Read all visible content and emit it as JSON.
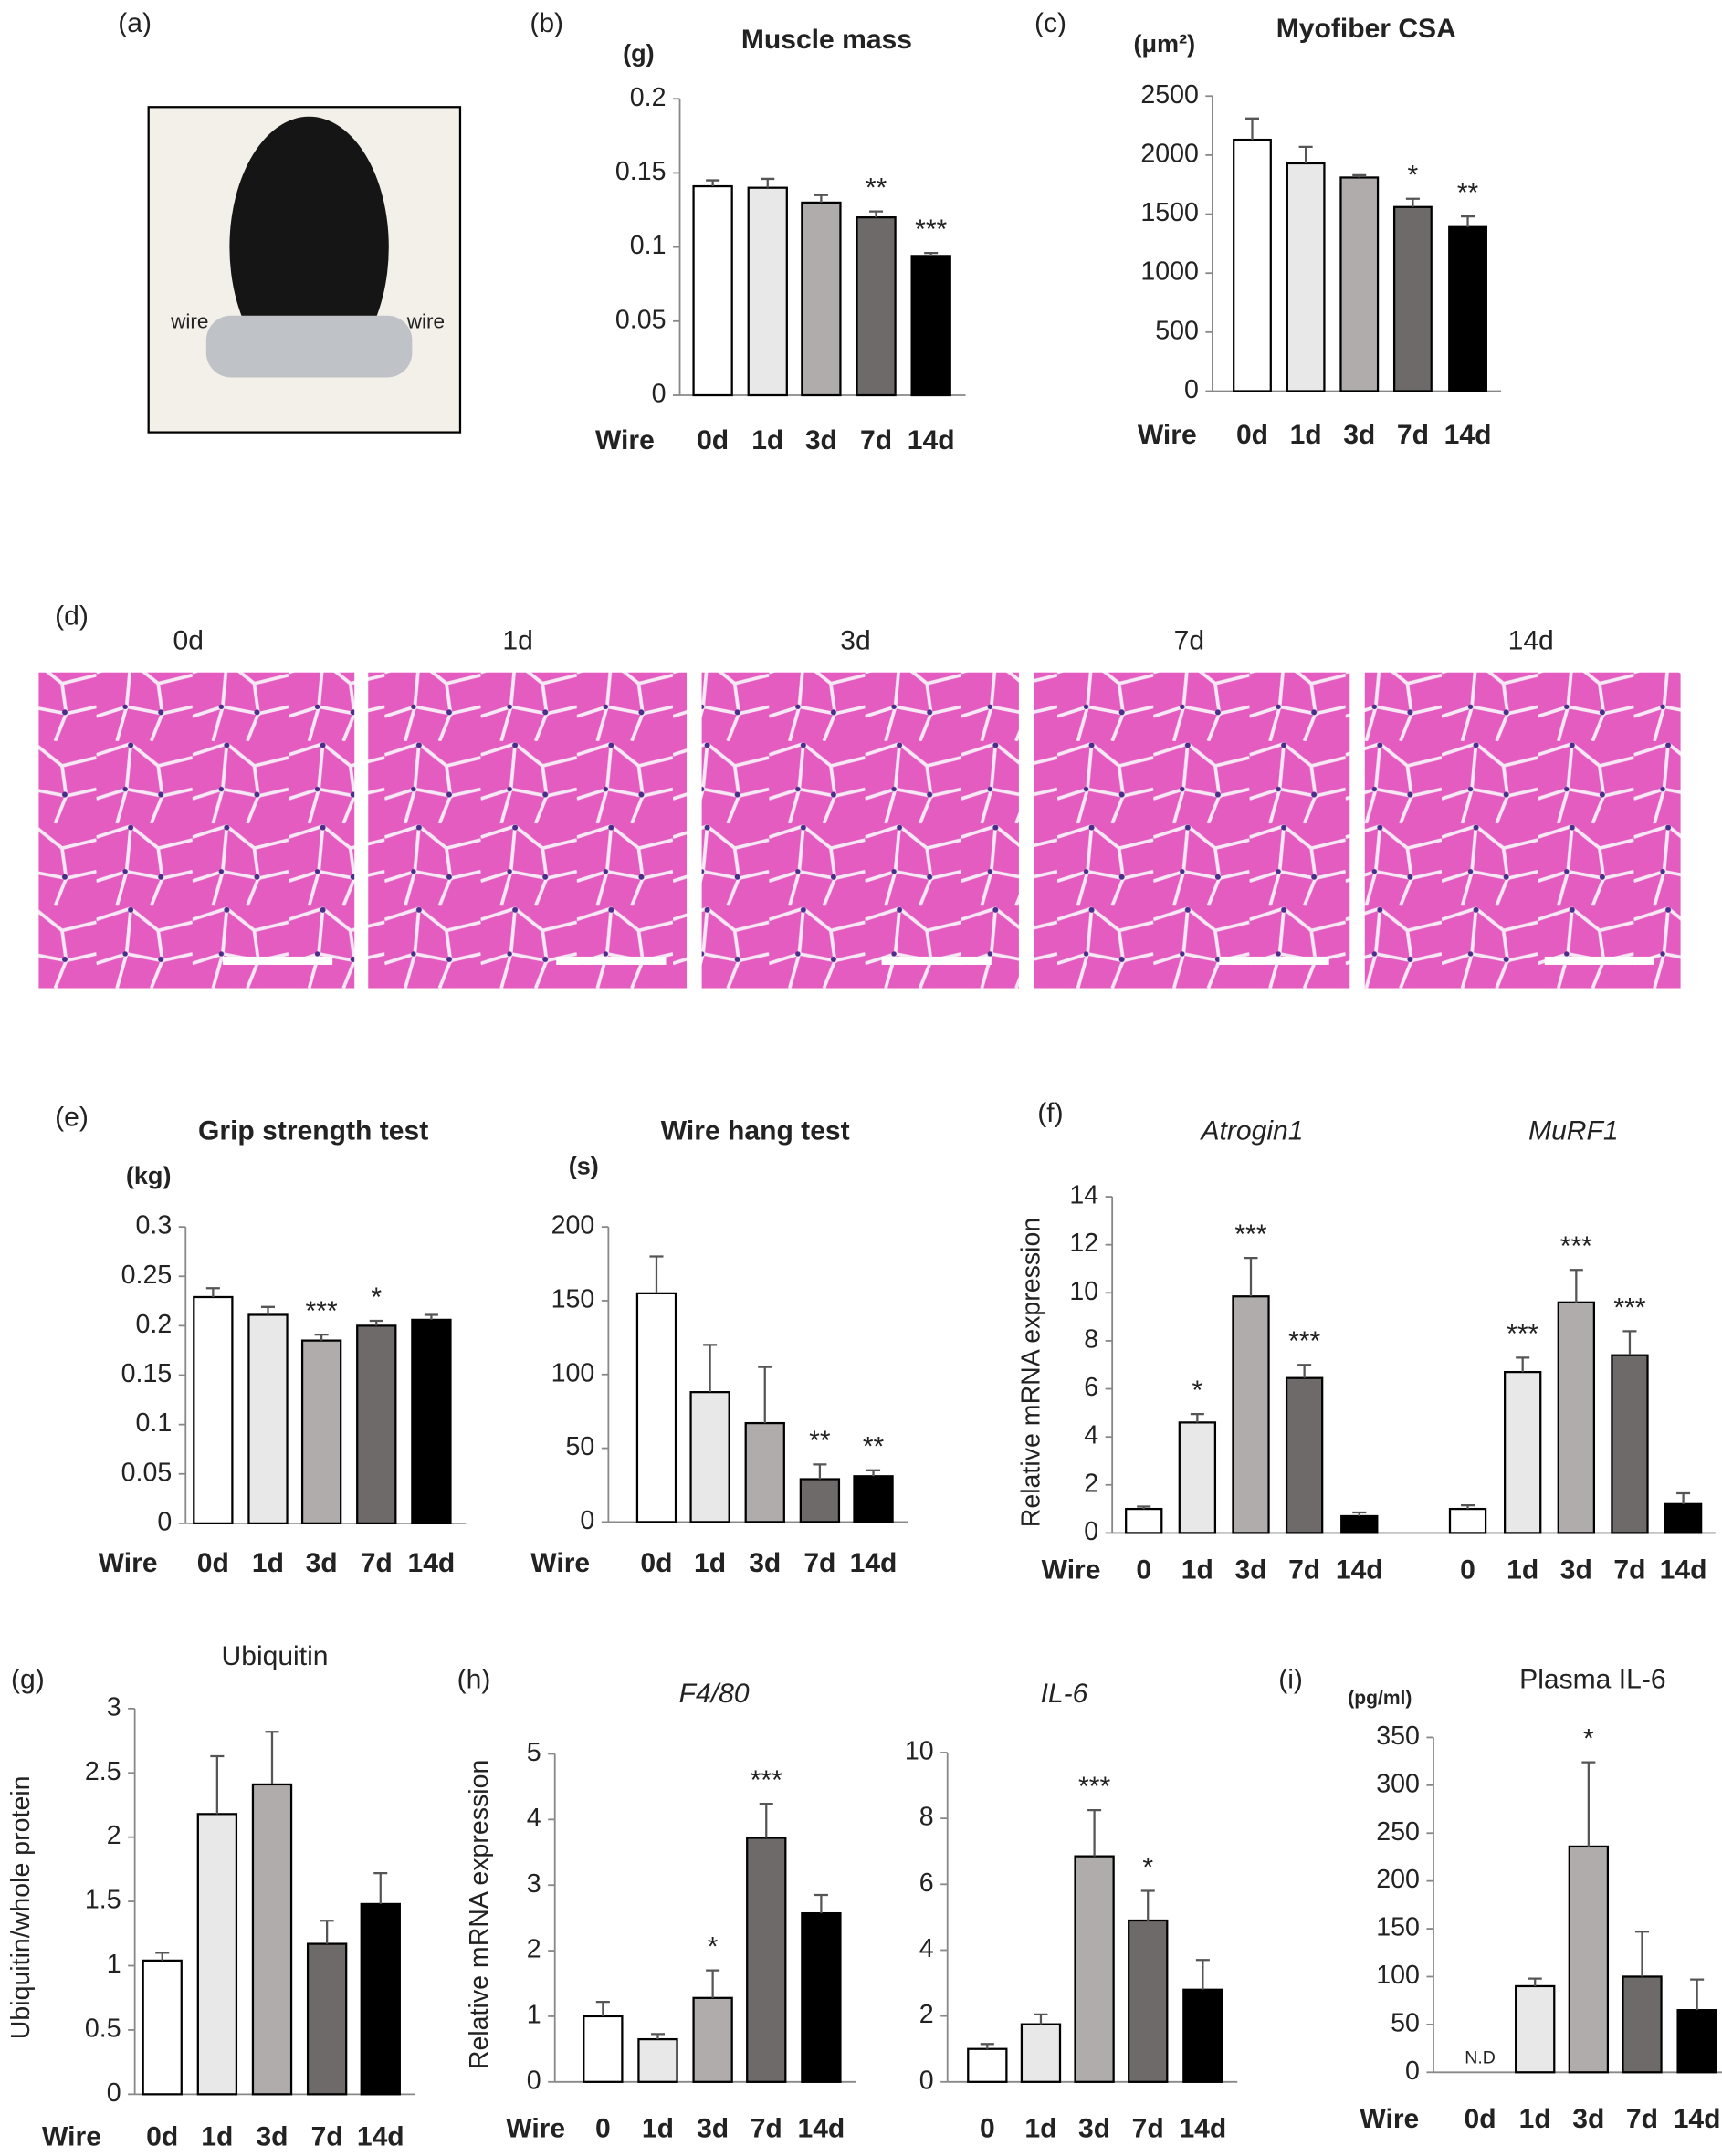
{
  "figure": {
    "a": {
      "label": "(a)",
      "wire_labels": [
        "wire",
        "wire"
      ]
    },
    "d": {
      "label": "(d)",
      "titles": [
        "0d",
        "1d",
        "3d",
        "7d",
        "14d"
      ]
    }
  },
  "chart_data": [
    {
      "type": "bar",
      "panel": "(b)",
      "title": "Muscle mass",
      "unit": "(g)",
      "x_label": "Wire",
      "colors": [
        "#ffffff",
        "#e8e8e8",
        "#b0acab",
        "#6e6a6a",
        "#000000"
      ],
      "ylim": [
        0,
        0.2
      ],
      "yticks": [
        0,
        0.05,
        0.1,
        0.15,
        0.2
      ],
      "groups": [
        {
          "categories": [
            "0d",
            "1d",
            "3d",
            "7d",
            "14d"
          ],
          "values": [
            0.141,
            0.14,
            0.13,
            0.12,
            0.094
          ],
          "errors": [
            0.004,
            0.006,
            0.005,
            0.004,
            0.002
          ],
          "annotations": [
            null,
            null,
            null,
            "**",
            "***"
          ]
        }
      ]
    },
    {
      "type": "bar",
      "panel": "(c)",
      "title": "Myofiber CSA",
      "unit": "(μm²)",
      "x_label": "Wire",
      "colors": [
        "#ffffff",
        "#e8e8e8",
        "#b0acab",
        "#6e6a6a",
        "#000000"
      ],
      "ylim": [
        0,
        2500
      ],
      "yticks": [
        0,
        500,
        1000,
        1500,
        2000,
        2500
      ],
      "groups": [
        {
          "categories": [
            "0d",
            "1d",
            "3d",
            "7d",
            "14d"
          ],
          "values": [
            2130,
            1930,
            1810,
            1560,
            1390
          ],
          "errors": [
            180,
            140,
            20,
            70,
            90
          ],
          "annotations": [
            null,
            null,
            null,
            "*",
            "**"
          ]
        }
      ]
    },
    {
      "type": "bar",
      "panel": "(e)",
      "title": "Grip strength test",
      "unit": "(kg)",
      "x_label": "Wire",
      "colors": [
        "#ffffff",
        "#e8e8e8",
        "#b0acab",
        "#6e6a6a",
        "#000000"
      ],
      "ylim": [
        0,
        0.3
      ],
      "yticks": [
        0,
        0.05,
        0.1,
        0.15,
        0.2,
        0.25,
        0.3
      ],
      "groups": [
        {
          "categories": [
            "0d",
            "1d",
            "3d",
            "7d",
            "14d"
          ],
          "values": [
            0.229,
            0.211,
            0.185,
            0.2,
            0.206
          ],
          "errors": [
            0.009,
            0.008,
            0.006,
            0.005,
            0.005
          ],
          "annotations": [
            null,
            null,
            "***",
            "*",
            null
          ]
        }
      ]
    },
    {
      "type": "bar",
      "title": "Wire hang test",
      "unit": "(s)",
      "x_label": "Wire",
      "colors": [
        "#ffffff",
        "#e8e8e8",
        "#b0acab",
        "#6e6a6a",
        "#000000"
      ],
      "ylim": [
        0,
        200
      ],
      "yticks": [
        0,
        50,
        100,
        150,
        200
      ],
      "groups": [
        {
          "categories": [
            "0d",
            "1d",
            "3d",
            "7d",
            "14d"
          ],
          "values": [
            155,
            88,
            67,
            29,
            31
          ],
          "errors": [
            25,
            32,
            38,
            10,
            4
          ],
          "annotations": [
            null,
            null,
            null,
            "**",
            "**"
          ]
        }
      ]
    },
    {
      "type": "bar",
      "panel": "(f)",
      "y_label": "Relative mRNA expression",
      "x_label": "Wire",
      "title_italic": true,
      "colors": [
        "#ffffff",
        "#e8e8e8",
        "#b0acab",
        "#6e6a6a",
        "#000000"
      ],
      "ylim": [
        0,
        14
      ],
      "yticks": [
        0,
        2,
        4,
        6,
        8,
        10,
        12,
        14
      ],
      "groups": [
        {
          "name": "Atrogin1",
          "categories": [
            "0",
            "1d",
            "3d",
            "7d",
            "14d"
          ],
          "values": [
            1.0,
            4.6,
            9.85,
            6.45,
            0.7
          ],
          "errors": [
            0.1,
            0.35,
            1.6,
            0.55,
            0.15
          ],
          "annotations": [
            null,
            "*",
            "***",
            "***",
            null
          ]
        },
        {
          "name": "MuRF1",
          "categories": [
            "0",
            "1d",
            "3d",
            "7d",
            "14d"
          ],
          "values": [
            1.0,
            6.7,
            9.6,
            7.4,
            1.2
          ],
          "errors": [
            0.15,
            0.6,
            1.35,
            1.0,
            0.45
          ],
          "annotations": [
            null,
            "***",
            "***",
            "***",
            null
          ]
        }
      ]
    },
    {
      "type": "bar",
      "panel": "(g)",
      "title": "Ubiquitin",
      "y_label": "Ubiquitin/whole protein",
      "x_label": "Wire",
      "colors": [
        "#ffffff",
        "#e8e8e8",
        "#b0acab",
        "#6e6a6a",
        "#000000"
      ],
      "ylim": [
        0,
        3
      ],
      "yticks": [
        0,
        0.5,
        1,
        1.5,
        2,
        2.5,
        3
      ],
      "groups": [
        {
          "categories": [
            "0d",
            "1d",
            "3d",
            "7d",
            "14d"
          ],
          "values": [
            1.04,
            2.18,
            2.41,
            1.17,
            1.48
          ],
          "errors": [
            0.06,
            0.45,
            0.41,
            0.18,
            0.24
          ],
          "annotations": [
            null,
            null,
            null,
            null,
            null
          ]
        }
      ]
    },
    {
      "type": "bar",
      "panel": "(h)",
      "title": "F4/80",
      "title_italic": true,
      "y_label": "Relative mRNA expression",
      "x_label": "Wire",
      "colors": [
        "#ffffff",
        "#e8e8e8",
        "#b0acab",
        "#6e6a6a",
        "#000000"
      ],
      "ylim": [
        0,
        5
      ],
      "yticks": [
        0,
        1,
        2,
        3,
        4,
        5
      ],
      "groups": [
        {
          "categories": [
            "0",
            "1d",
            "3d",
            "7d",
            "14d"
          ],
          "values": [
            1.0,
            0.65,
            1.28,
            3.72,
            2.57
          ],
          "errors": [
            0.22,
            0.08,
            0.42,
            0.52,
            0.28
          ],
          "annotations": [
            null,
            null,
            "*",
            "***",
            null
          ]
        }
      ]
    },
    {
      "type": "bar",
      "title": "IL-6",
      "title_italic": true,
      "colors": [
        "#ffffff",
        "#e8e8e8",
        "#b0acab",
        "#6e6a6a",
        "#000000"
      ],
      "ylim": [
        0,
        10
      ],
      "yticks": [
        0,
        2,
        4,
        6,
        8,
        10
      ],
      "groups": [
        {
          "categories": [
            "0",
            "1d",
            "3d",
            "7d",
            "14d"
          ],
          "values": [
            1.0,
            1.75,
            6.85,
            4.9,
            2.8
          ],
          "errors": [
            0.15,
            0.3,
            1.4,
            0.9,
            0.9
          ],
          "annotations": [
            null,
            null,
            "***",
            "*",
            null
          ]
        }
      ]
    },
    {
      "type": "bar",
      "panel": "(i)",
      "title": "Plasma IL-6",
      "unit": "(pg/ml)",
      "x_label": "Wire",
      "colors": [
        "#ffffff",
        "#e8e8e8",
        "#b0acab",
        "#6e6a6a",
        "#000000"
      ],
      "ylim": [
        0,
        350
      ],
      "yticks": [
        0,
        50,
        100,
        150,
        200,
        250,
        300,
        350
      ],
      "groups": [
        {
          "categories": [
            "0d",
            "1d",
            "3d",
            "7d",
            "14d"
          ],
          "values": [
            null,
            90,
            236,
            100,
            65
          ],
          "value_labels": [
            "N.D",
            null,
            null,
            null,
            null
          ],
          "errors": [
            null,
            8,
            88,
            47,
            32
          ],
          "annotations": [
            null,
            null,
            "*",
            null,
            null
          ]
        }
      ]
    }
  ]
}
